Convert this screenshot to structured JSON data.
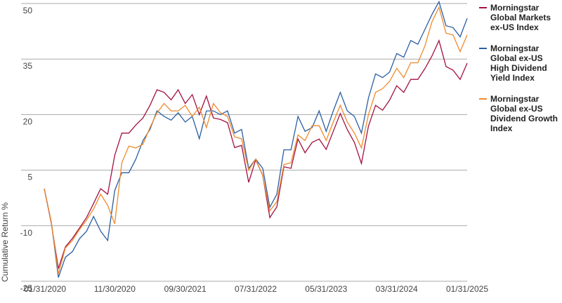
{
  "chart_data": {
    "type": "line",
    "y_label": "Cumulative Return %",
    "categories": [
      "01/31/2020",
      null,
      null,
      null,
      null,
      null,
      null,
      null,
      null,
      null,
      "11/30/2020",
      null,
      null,
      null,
      null,
      null,
      null,
      null,
      null,
      null,
      "09/30/2021",
      null,
      null,
      null,
      null,
      null,
      null,
      null,
      null,
      null,
      "07/31/2022",
      null,
      null,
      null,
      null,
      null,
      null,
      null,
      null,
      null,
      "05/31/2023",
      null,
      null,
      null,
      null,
      null,
      null,
      null,
      null,
      null,
      "03/31/2024",
      null,
      null,
      null,
      null,
      null,
      null,
      null,
      null,
      null,
      "01/31/2025"
    ],
    "series": [
      {
        "name": "Morningstar Global Markets ex-US Index",
        "color": "#a3123f",
        "values": [
          0,
          -9.3,
          -21.6,
          -15.7,
          -13.4,
          -10.6,
          -7.8,
          -4,
          0,
          -1.5,
          9,
          15,
          15,
          17.2,
          19.1,
          22.5,
          26.7,
          26,
          24,
          26.7,
          23,
          25.4,
          20,
          25,
          19.1,
          18.7,
          17.8,
          11.1,
          11.7,
          1.7,
          7.8,
          3.6,
          -7.8,
          -4.9,
          5.9,
          5.5,
          13.4,
          9.7,
          12.5,
          13.4,
          10.6,
          15.5,
          20.3,
          15.9,
          12.5,
          6.8,
          16.9,
          22.5,
          21.2,
          23.9,
          27.8,
          26,
          29.5,
          29.5,
          32.4,
          35.8,
          40,
          33,
          32,
          29.5,
          33.9
        ]
      },
      {
        "name": "Morningstar Global ex-US High Dividend Yield Index",
        "color": "#2b5fa3",
        "values": [
          0,
          -9,
          -24,
          -18.5,
          -17,
          -13.5,
          -11.5,
          -7.5,
          -11.5,
          -14,
          -0.5,
          4.3,
          4.3,
          8,
          13,
          16,
          21,
          19.5,
          18.5,
          20.5,
          18,
          19.5,
          13.5,
          21,
          21,
          20,
          21,
          15,
          16,
          5.5,
          8,
          5.5,
          -5,
          -1.5,
          10.5,
          10.5,
          19.5,
          15.5,
          16.5,
          21,
          15.5,
          21,
          26,
          21,
          19.5,
          15,
          24.5,
          31,
          30,
          31.5,
          36.5,
          35.5,
          40,
          39,
          43,
          47,
          50.5,
          44,
          43.5,
          41,
          46
        ]
      },
      {
        "name": "Morningstar Global ex-US Dividend Growth Index",
        "color": "#ef8a2c",
        "values": [
          0,
          -9,
          -23,
          -16,
          -14,
          -11,
          -8.5,
          -5.5,
          -1.5,
          -4.5,
          -9.5,
          7,
          11.5,
          11,
          12,
          16.5,
          20.5,
          23,
          21,
          21,
          22.5,
          19.5,
          22,
          16.5,
          23,
          20.5,
          19.5,
          14,
          13.5,
          5,
          8,
          3.5,
          -6,
          -3.5,
          6.5,
          7,
          14.5,
          13,
          17,
          17,
          13,
          18,
          22.5,
          18,
          15,
          11,
          20,
          26,
          27,
          29,
          32.5,
          30,
          34,
          34,
          38.5,
          45,
          49,
          42,
          41.5,
          37,
          41.5
        ]
      }
    ],
    "ylim": [
      -25,
      50
    ],
    "yticks": [
      -25,
      -10,
      5,
      20,
      35,
      50
    ],
    "grid": true,
    "legend": "right"
  }
}
